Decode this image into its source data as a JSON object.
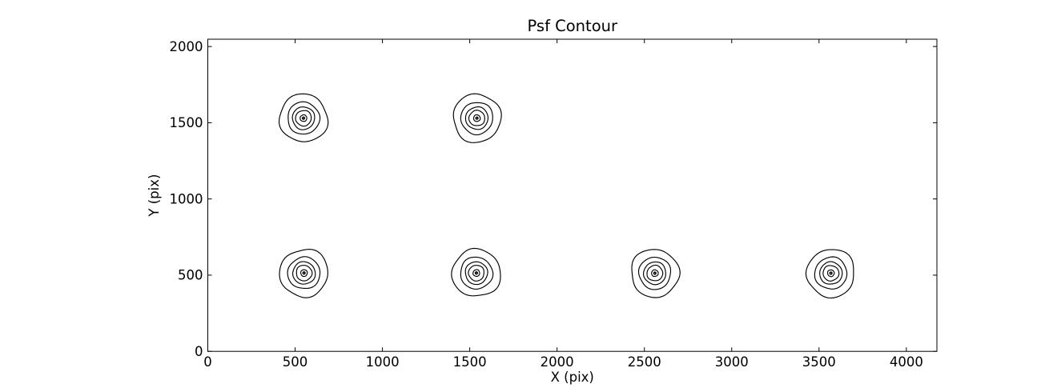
{
  "chart_data": {
    "type": "contour",
    "title": "Psf Contour",
    "xlabel": "X (pix)",
    "ylabel": "Y (pix)",
    "xlim": [
      0,
      4175
    ],
    "ylim": [
      0,
      2048
    ],
    "xticks": [
      0,
      500,
      1000,
      1500,
      2000,
      2500,
      3000,
      3500,
      4000
    ],
    "yticks": [
      0,
      500,
      1000,
      1500,
      2000
    ],
    "grid": false,
    "legend": "none",
    "line_color": "#000000",
    "background_color": "#ffffff",
    "contour_levels_per_source": 6,
    "level_radii_x_pix": [
      138,
      92,
      64,
      45,
      19,
      6.5
    ],
    "level_radii_y_pix": [
      157,
      105,
      74,
      51,
      22,
      7.5
    ],
    "sources": [
      {
        "x": 548,
        "y": 1530
      },
      {
        "x": 1541,
        "y": 1530
      },
      {
        "x": 551,
        "y": 514
      },
      {
        "x": 1538,
        "y": 514
      },
      {
        "x": 2560,
        "y": 513
      },
      {
        "x": 3568,
        "y": 513
      }
    ]
  }
}
